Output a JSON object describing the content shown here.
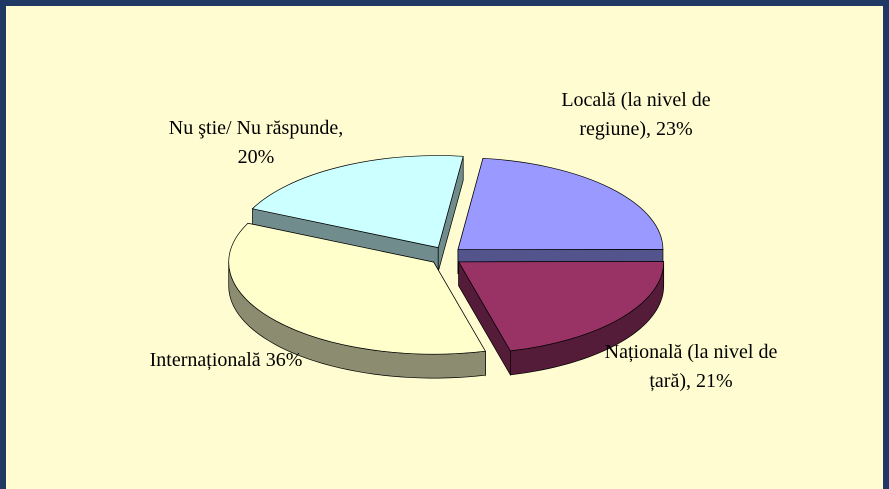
{
  "chart_data": {
    "type": "pie3d",
    "categories": [
      "Locală (la nivel de regiune),",
      "Națională (la nivel de țară),",
      "Internațională",
      "Nu ştie/ Nu răspunde,"
    ],
    "values": [
      23,
      21,
      36,
      20
    ],
    "value_labels": [
      "23%",
      "21%",
      "36%",
      "20%"
    ],
    "colors": [
      "#9999ff",
      "#993366",
      "#ffffcc",
      "#ccffff"
    ]
  }
}
